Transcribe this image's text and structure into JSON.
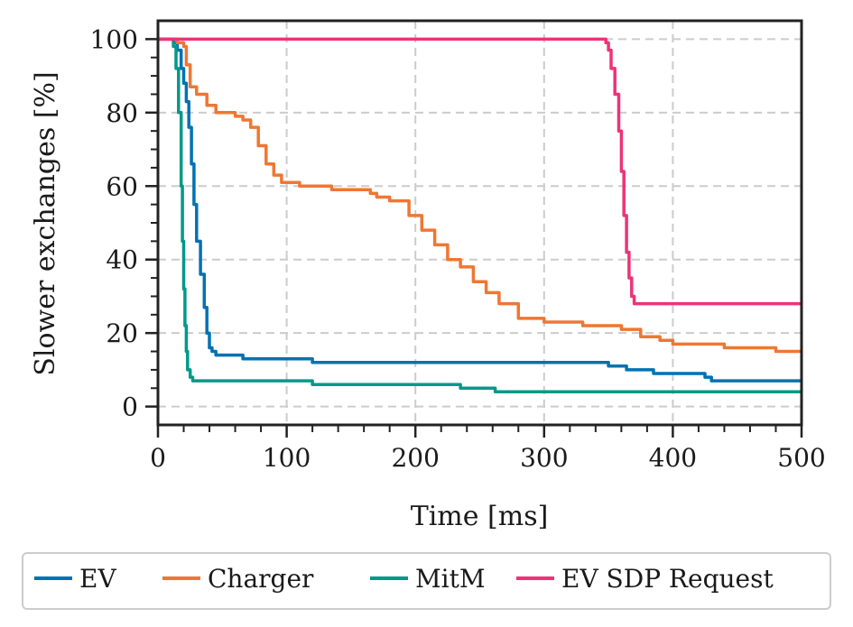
{
  "chart_data": {
    "type": "line",
    "xlabel": "Time [ms]",
    "ylabel": "Slower exchanges [%]",
    "xlim": [
      0,
      500
    ],
    "ylim": [
      -5,
      105
    ],
    "x_ticks": [
      0,
      100,
      200,
      300,
      400,
      500
    ],
    "y_ticks": [
      0,
      20,
      40,
      60,
      80,
      100
    ],
    "x_tick_labels": [
      "0",
      "100",
      "200",
      "300",
      "400",
      "500"
    ],
    "y_tick_labels": [
      "0",
      "20",
      "40",
      "60",
      "80",
      "100"
    ],
    "grid": true,
    "legend_position": "bottom",
    "series": [
      {
        "name": "EV",
        "color": "#0072b2",
        "points": [
          [
            0,
            100
          ],
          [
            8,
            100
          ],
          [
            12,
            99
          ],
          [
            15,
            97
          ],
          [
            18,
            92
          ],
          [
            20,
            88
          ],
          [
            22,
            83
          ],
          [
            24,
            76
          ],
          [
            26,
            66
          ],
          [
            28,
            55
          ],
          [
            30,
            45
          ],
          [
            33,
            36
          ],
          [
            36,
            27
          ],
          [
            38,
            20
          ],
          [
            40,
            16
          ],
          [
            42,
            15
          ],
          [
            45,
            14
          ],
          [
            65,
            14
          ],
          [
            66,
            13
          ],
          [
            115,
            13
          ],
          [
            120,
            12
          ],
          [
            345,
            12
          ],
          [
            350,
            11
          ],
          [
            360,
            11
          ],
          [
            364,
            10
          ],
          [
            382,
            10
          ],
          [
            385,
            9
          ],
          [
            420,
            9
          ],
          [
            425,
            8
          ],
          [
            430,
            7
          ],
          [
            500,
            7
          ]
        ]
      },
      {
        "name": "Charger",
        "color": "#ee7733",
        "points": [
          [
            0,
            100
          ],
          [
            15,
            99
          ],
          [
            20,
            98
          ],
          [
            22,
            93
          ],
          [
            25,
            87
          ],
          [
            30,
            85
          ],
          [
            38,
            82
          ],
          [
            45,
            80
          ],
          [
            60,
            79
          ],
          [
            66,
            78
          ],
          [
            72,
            76
          ],
          [
            78,
            71
          ],
          [
            84,
            66
          ],
          [
            90,
            63
          ],
          [
            96,
            61
          ],
          [
            110,
            60
          ],
          [
            135,
            59
          ],
          [
            165,
            58
          ],
          [
            170,
            57
          ],
          [
            180,
            56
          ],
          [
            195,
            52
          ],
          [
            205,
            48
          ],
          [
            215,
            44
          ],
          [
            225,
            40
          ],
          [
            235,
            38
          ],
          [
            245,
            34
          ],
          [
            255,
            31
          ],
          [
            265,
            28
          ],
          [
            280,
            24
          ],
          [
            300,
            23
          ],
          [
            330,
            22
          ],
          [
            360,
            21
          ],
          [
            375,
            19
          ],
          [
            390,
            18
          ],
          [
            400,
            17
          ],
          [
            420,
            17
          ],
          [
            440,
            16
          ],
          [
            480,
            15
          ],
          [
            500,
            15
          ]
        ]
      },
      {
        "name": "MitM",
        "color": "#009988",
        "points": [
          [
            0,
            100
          ],
          [
            10,
            100
          ],
          [
            12,
            98
          ],
          [
            14,
            92
          ],
          [
            16,
            80
          ],
          [
            18,
            60
          ],
          [
            19,
            45
          ],
          [
            20,
            32
          ],
          [
            21,
            22
          ],
          [
            22,
            15
          ],
          [
            23,
            10
          ],
          [
            25,
            8
          ],
          [
            27,
            7
          ],
          [
            110,
            7
          ],
          [
            120,
            6
          ],
          [
            230,
            6
          ],
          [
            235,
            5
          ],
          [
            260,
            5
          ],
          [
            262,
            4
          ],
          [
            500,
            4
          ]
        ]
      },
      {
        "name": "EV SDP Request",
        "color": "#ee3377",
        "points": [
          [
            0,
            100
          ],
          [
            345,
            100
          ],
          [
            348,
            99
          ],
          [
            350,
            97
          ],
          [
            352,
            92
          ],
          [
            355,
            85
          ],
          [
            358,
            75
          ],
          [
            360,
            64
          ],
          [
            362,
            52
          ],
          [
            364,
            42
          ],
          [
            366,
            35
          ],
          [
            368,
            30
          ],
          [
            370,
            28
          ],
          [
            500,
            28
          ]
        ]
      }
    ]
  }
}
